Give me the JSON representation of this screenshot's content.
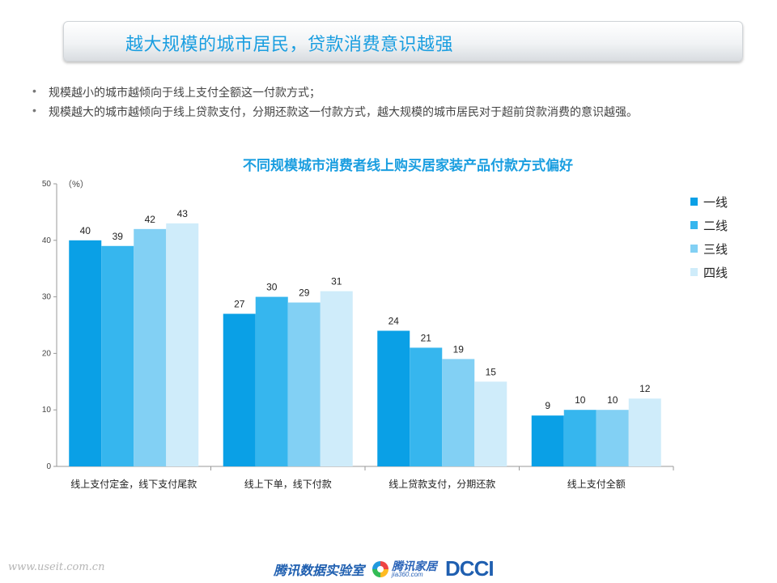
{
  "header": {
    "title": "越大规模的城市居民，贷款消费意识越强"
  },
  "bullets": [
    {
      "text": "规模越小的城市越倾向于线上支付全额这一付款方式；"
    },
    {
      "text": "规模越大的城市越倾向于线上贷款支付，分期还款这一付款方式，越大规模的城市居民对于超前贷款消费的意识越强。"
    }
  ],
  "bullet_symbol": "•",
  "chart_data": {
    "type": "bar",
    "title": "不同规模城市消费者线上购买居家装产品付款方式偏好",
    "unit_label": "（%）",
    "ylim": [
      0,
      50
    ],
    "yticks": [
      0,
      10,
      20,
      30,
      40,
      50
    ],
    "grid": false,
    "legend_position": "right",
    "categories": [
      "线上支付定金，线下支付尾款",
      "线上下单，线下付款",
      "线上贷款支付，分期还款",
      "线上支付全额"
    ],
    "series": [
      {
        "name": "一线",
        "color": "#0aa0e6",
        "values": [
          40,
          27,
          24,
          9
        ]
      },
      {
        "name": "二线",
        "color": "#36b6ee",
        "values": [
          39,
          30,
          21,
          10
        ]
      },
      {
        "name": "三线",
        "color": "#82d0f4",
        "values": [
          42,
          29,
          19,
          10
        ]
      },
      {
        "name": "四线",
        "color": "#cfecfa",
        "values": [
          43,
          31,
          15,
          12
        ]
      }
    ]
  },
  "footer": {
    "url": "www.useit.com.cn",
    "logo_lab": "腾讯数据实验室",
    "logo_jiaju_main": "腾讯家居",
    "logo_jiaju_sub": "jia360.com",
    "logo_dcci": "DCCI"
  }
}
